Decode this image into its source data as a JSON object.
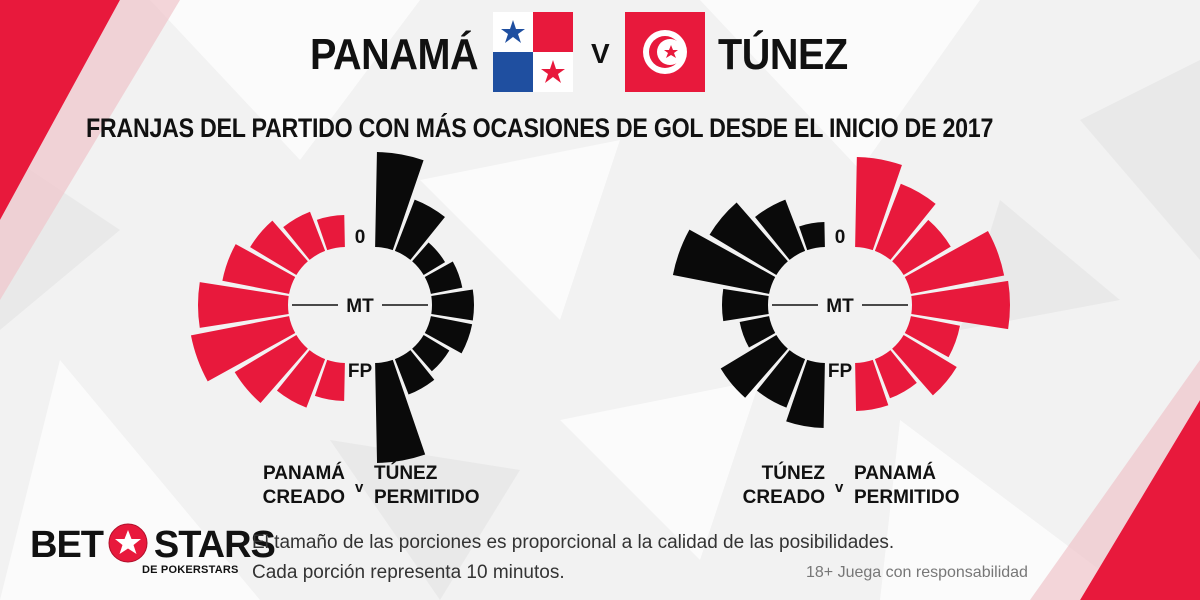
{
  "header": {
    "team_left": "PANAMÁ",
    "vs": "V",
    "team_right": "TÚNEZ",
    "subtitle": "FRANJAS DEL PARTIDO CON MÁS OCASIONES DE GOL DESDE EL INICIO DE 2017"
  },
  "colors": {
    "red": "#e8193c",
    "black": "#0a0a0a",
    "background": "#f2f2f2"
  },
  "chart_data": [
    {
      "type": "radial-bar",
      "center_labels": {
        "top": "0",
        "middle": "MT",
        "bottom": "FP"
      },
      "left_half": {
        "color": "red",
        "segments": [
          0.32,
          0.42,
          0.54,
          0.68,
          0.9,
          1.0,
          0.72,
          0.52,
          0.38
        ]
      },
      "right_half": {
        "color": "black",
        "segments": [
          0.95,
          0.55,
          0.25,
          0.32,
          0.42,
          0.42,
          0.3,
          0.38,
          1.0
        ]
      },
      "legend": {
        "left_line1": "PANAMÁ",
        "left_line2": "CREADO",
        "vs": "v",
        "right_line1": "TÚNEZ",
        "right_line2": "PERMITIDO"
      }
    },
    {
      "type": "radial-bar",
      "center_labels": {
        "top": "0",
        "middle": "MT",
        "bottom": "FP"
      },
      "left_half": {
        "color": "black",
        "segments": [
          0.25,
          0.55,
          0.78,
          0.98,
          0.46,
          0.3,
          0.65,
          0.52,
          0.65
        ]
      },
      "right_half": {
        "color": "red",
        "segments": [
          0.9,
          0.72,
          0.55,
          0.95,
          0.98,
          0.5,
          0.62,
          0.42,
          0.48
        ]
      },
      "legend": {
        "left_line1": "TÚNEZ",
        "left_line2": "CREADO",
        "vs": "v",
        "right_line1": "PANAMÁ",
        "right_line2": "PERMITIDO"
      }
    }
  ],
  "footer": {
    "logo_main_left": "BET",
    "logo_main_right": "STARS",
    "logo_sub": "DE POKERSTARS",
    "note_line1": "El tamaño de las porciones es proporcional a la calidad de las posibilidades.",
    "note_line2": "Cada porción representa 10 minutos.",
    "responsible": "18+ Juega con responsabilidad"
  }
}
